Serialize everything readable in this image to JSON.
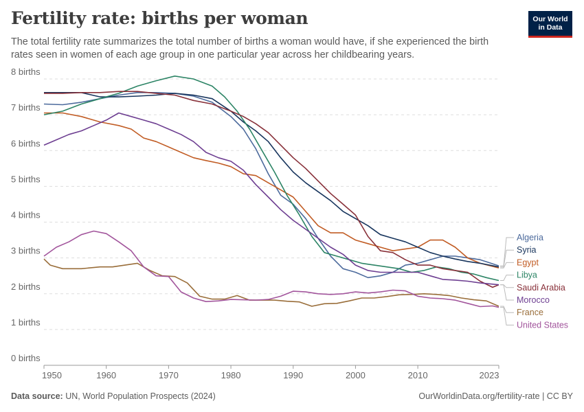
{
  "header": {
    "title": "Fertility rate: births per woman",
    "subtitle": "The total fertility rate summarizes the total number of births a woman would have, if she experienced the birth rates seen in women of each age group in one particular year across her childbearing years."
  },
  "logo": {
    "line1": "Our World",
    "line2": "in Data",
    "bg": "#002147",
    "accent": "#ce261e"
  },
  "footer": {
    "source_label": "Data source:",
    "source_text": "UN, World Population Prospects (2024)",
    "right_text": "OurWorldinData.org/fertility-rate | CC BY"
  },
  "chart_data": {
    "type": "line",
    "title": "Fertility rate: births per woman",
    "ylabel": "",
    "xlabel": "",
    "xlim": [
      1950,
      2023
    ],
    "ylim": [
      0,
      8
    ],
    "yticks": [
      0,
      1,
      2,
      3,
      4,
      5,
      6,
      7,
      8
    ],
    "ytick_labels": [
      "0 births",
      "1 births",
      "2 births",
      "3 births",
      "4 births",
      "5 births",
      "6 births",
      "7 births",
      "8 births"
    ],
    "xticks": [
      1950,
      1960,
      1970,
      1980,
      1990,
      2000,
      2010,
      2023
    ],
    "xtick_labels": [
      "1950",
      "1960",
      "1970",
      "1980",
      "1990",
      "2000",
      "2010",
      "2023"
    ],
    "grid": "horizontal dashed",
    "legend": "right, end-of-line labels",
    "series": [
      {
        "name": "Algeria",
        "color": "#4c6a9c",
        "points": [
          [
            1950,
            7.3
          ],
          [
            1953,
            7.28
          ],
          [
            1956,
            7.35
          ],
          [
            1959,
            7.45
          ],
          [
            1962,
            7.55
          ],
          [
            1965,
            7.62
          ],
          [
            1968,
            7.62
          ],
          [
            1971,
            7.6
          ],
          [
            1974,
            7.52
          ],
          [
            1977,
            7.35
          ],
          [
            1980,
            6.95
          ],
          [
            1982,
            6.6
          ],
          [
            1984,
            6.05
          ],
          [
            1986,
            5.35
          ],
          [
            1988,
            4.75
          ],
          [
            1990,
            4.5
          ],
          [
            1992,
            4.1
          ],
          [
            1994,
            3.55
          ],
          [
            1996,
            3.05
          ],
          [
            1998,
            2.7
          ],
          [
            2000,
            2.6
          ],
          [
            2002,
            2.45
          ],
          [
            2004,
            2.5
          ],
          [
            2006,
            2.6
          ],
          [
            2008,
            2.8
          ],
          [
            2010,
            2.85
          ],
          [
            2012,
            2.95
          ],
          [
            2014,
            3.05
          ],
          [
            2016,
            3.05
          ],
          [
            2018,
            3.0
          ],
          [
            2020,
            2.95
          ],
          [
            2023,
            2.78
          ]
        ]
      },
      {
        "name": "Egypt",
        "color": "#c15c24",
        "points": [
          [
            1950,
            7.05
          ],
          [
            1953,
            7.05
          ],
          [
            1956,
            6.95
          ],
          [
            1959,
            6.8
          ],
          [
            1962,
            6.7
          ],
          [
            1964,
            6.6
          ],
          [
            1966,
            6.35
          ],
          [
            1968,
            6.25
          ],
          [
            1970,
            6.1
          ],
          [
            1972,
            5.95
          ],
          [
            1974,
            5.8
          ],
          [
            1976,
            5.72
          ],
          [
            1978,
            5.65
          ],
          [
            1980,
            5.55
          ],
          [
            1982,
            5.35
          ],
          [
            1984,
            5.3
          ],
          [
            1986,
            5.1
          ],
          [
            1988,
            4.9
          ],
          [
            1990,
            4.7
          ],
          [
            1992,
            4.3
          ],
          [
            1994,
            3.9
          ],
          [
            1996,
            3.7
          ],
          [
            1998,
            3.7
          ],
          [
            2000,
            3.5
          ],
          [
            2002,
            3.4
          ],
          [
            2004,
            3.3
          ],
          [
            2006,
            3.2
          ],
          [
            2008,
            3.25
          ],
          [
            2010,
            3.3
          ],
          [
            2012,
            3.5
          ],
          [
            2014,
            3.5
          ],
          [
            2016,
            3.3
          ],
          [
            2018,
            3.0
          ],
          [
            2020,
            2.85
          ],
          [
            2023,
            2.72
          ]
        ]
      },
      {
        "name": "Syria",
        "color": "#18355d",
        "points": [
          [
            1950,
            7.62
          ],
          [
            1953,
            7.62
          ],
          [
            1956,
            7.62
          ],
          [
            1959,
            7.5
          ],
          [
            1962,
            7.5
          ],
          [
            1965,
            7.52
          ],
          [
            1968,
            7.55
          ],
          [
            1971,
            7.6
          ],
          [
            1974,
            7.55
          ],
          [
            1977,
            7.45
          ],
          [
            1980,
            7.1
          ],
          [
            1982,
            6.8
          ],
          [
            1984,
            6.55
          ],
          [
            1986,
            6.25
          ],
          [
            1988,
            5.8
          ],
          [
            1990,
            5.4
          ],
          [
            1992,
            5.1
          ],
          [
            1994,
            4.85
          ],
          [
            1996,
            4.6
          ],
          [
            1998,
            4.3
          ],
          [
            2000,
            4.1
          ],
          [
            2002,
            3.9
          ],
          [
            2004,
            3.65
          ],
          [
            2006,
            3.55
          ],
          [
            2008,
            3.45
          ],
          [
            2010,
            3.3
          ],
          [
            2012,
            3.15
          ],
          [
            2014,
            3.05
          ],
          [
            2016,
            2.97
          ],
          [
            2018,
            2.9
          ],
          [
            2020,
            2.85
          ],
          [
            2023,
            2.75
          ]
        ]
      },
      {
        "name": "Libya",
        "color": "#2c8465",
        "points": [
          [
            1950,
            7.0
          ],
          [
            1953,
            7.1
          ],
          [
            1956,
            7.3
          ],
          [
            1959,
            7.45
          ],
          [
            1962,
            7.6
          ],
          [
            1965,
            7.8
          ],
          [
            1968,
            7.95
          ],
          [
            1971,
            8.08
          ],
          [
            1974,
            8.0
          ],
          [
            1977,
            7.8
          ],
          [
            1979,
            7.5
          ],
          [
            1981,
            7.1
          ],
          [
            1983,
            6.6
          ],
          [
            1985,
            6.0
          ],
          [
            1987,
            5.4
          ],
          [
            1989,
            4.75
          ],
          [
            1991,
            4.2
          ],
          [
            1993,
            3.6
          ],
          [
            1995,
            3.15
          ],
          [
            1997,
            3.05
          ],
          [
            1999,
            2.95
          ],
          [
            2001,
            2.85
          ],
          [
            2003,
            2.8
          ],
          [
            2005,
            2.75
          ],
          [
            2007,
            2.7
          ],
          [
            2009,
            2.6
          ],
          [
            2011,
            2.65
          ],
          [
            2013,
            2.75
          ],
          [
            2015,
            2.7
          ],
          [
            2017,
            2.6
          ],
          [
            2019,
            2.55
          ],
          [
            2021,
            2.45
          ],
          [
            2023,
            2.37
          ]
        ]
      },
      {
        "name": "Saudi Arabia",
        "color": "#883039",
        "points": [
          [
            1950,
            7.6
          ],
          [
            1953,
            7.6
          ],
          [
            1956,
            7.62
          ],
          [
            1959,
            7.62
          ],
          [
            1962,
            7.65
          ],
          [
            1965,
            7.65
          ],
          [
            1968,
            7.6
          ],
          [
            1971,
            7.55
          ],
          [
            1974,
            7.4
          ],
          [
            1977,
            7.3
          ],
          [
            1980,
            7.1
          ],
          [
            1982,
            6.95
          ],
          [
            1984,
            6.75
          ],
          [
            1986,
            6.5
          ],
          [
            1988,
            6.15
          ],
          [
            1990,
            5.8
          ],
          [
            1992,
            5.5
          ],
          [
            1994,
            5.15
          ],
          [
            1996,
            4.8
          ],
          [
            1998,
            4.5
          ],
          [
            2000,
            4.2
          ],
          [
            2002,
            3.6
          ],
          [
            2004,
            3.2
          ],
          [
            2006,
            3.15
          ],
          [
            2008,
            2.95
          ],
          [
            2010,
            2.8
          ],
          [
            2012,
            2.8
          ],
          [
            2014,
            2.7
          ],
          [
            2016,
            2.65
          ],
          [
            2018,
            2.6
          ],
          [
            2020,
            2.35
          ],
          [
            2022,
            2.18
          ],
          [
            2023,
            2.25
          ]
        ]
      },
      {
        "name": "Morocco",
        "color": "#6d3e91",
        "points": [
          [
            1950,
            6.15
          ],
          [
            1952,
            6.3
          ],
          [
            1954,
            6.45
          ],
          [
            1956,
            6.55
          ],
          [
            1958,
            6.7
          ],
          [
            1960,
            6.85
          ],
          [
            1962,
            7.05
          ],
          [
            1964,
            6.95
          ],
          [
            1966,
            6.85
          ],
          [
            1968,
            6.75
          ],
          [
            1970,
            6.6
          ],
          [
            1972,
            6.45
          ],
          [
            1974,
            6.25
          ],
          [
            1976,
            5.95
          ],
          [
            1978,
            5.8
          ],
          [
            1980,
            5.7
          ],
          [
            1982,
            5.45
          ],
          [
            1984,
            5.05
          ],
          [
            1986,
            4.7
          ],
          [
            1988,
            4.35
          ],
          [
            1990,
            4.05
          ],
          [
            1992,
            3.8
          ],
          [
            1994,
            3.55
          ],
          [
            1996,
            3.3
          ],
          [
            1998,
            3.1
          ],
          [
            2000,
            2.8
          ],
          [
            2002,
            2.65
          ],
          [
            2004,
            2.6
          ],
          [
            2006,
            2.6
          ],
          [
            2008,
            2.6
          ],
          [
            2010,
            2.6
          ],
          [
            2012,
            2.5
          ],
          [
            2014,
            2.4
          ],
          [
            2016,
            2.38
          ],
          [
            2018,
            2.35
          ],
          [
            2020,
            2.3
          ],
          [
            2023,
            2.25
          ]
        ]
      },
      {
        "name": "France",
        "color": "#996d39",
        "points": [
          [
            1950,
            2.97
          ],
          [
            1951,
            2.8
          ],
          [
            1953,
            2.7
          ],
          [
            1956,
            2.7
          ],
          [
            1959,
            2.75
          ],
          [
            1961,
            2.75
          ],
          [
            1963,
            2.8
          ],
          [
            1965,
            2.85
          ],
          [
            1967,
            2.65
          ],
          [
            1969,
            2.5
          ],
          [
            1971,
            2.48
          ],
          [
            1973,
            2.3
          ],
          [
            1975,
            1.93
          ],
          [
            1977,
            1.85
          ],
          [
            1979,
            1.85
          ],
          [
            1981,
            1.95
          ],
          [
            1983,
            1.82
          ],
          [
            1985,
            1.82
          ],
          [
            1987,
            1.82
          ],
          [
            1989,
            1.79
          ],
          [
            1991,
            1.77
          ],
          [
            1993,
            1.65
          ],
          [
            1995,
            1.72
          ],
          [
            1997,
            1.73
          ],
          [
            1999,
            1.8
          ],
          [
            2001,
            1.88
          ],
          [
            2003,
            1.88
          ],
          [
            2005,
            1.92
          ],
          [
            2007,
            1.97
          ],
          [
            2009,
            1.98
          ],
          [
            2011,
            2.0
          ],
          [
            2013,
            1.98
          ],
          [
            2015,
            1.95
          ],
          [
            2017,
            1.88
          ],
          [
            2019,
            1.83
          ],
          [
            2021,
            1.8
          ],
          [
            2023,
            1.65
          ]
        ]
      },
      {
        "name": "United States",
        "color": "#a2559c",
        "points": [
          [
            1950,
            3.05
          ],
          [
            1952,
            3.3
          ],
          [
            1954,
            3.45
          ],
          [
            1956,
            3.65
          ],
          [
            1958,
            3.75
          ],
          [
            1960,
            3.68
          ],
          [
            1962,
            3.45
          ],
          [
            1964,
            3.2
          ],
          [
            1966,
            2.75
          ],
          [
            1968,
            2.5
          ],
          [
            1970,
            2.48
          ],
          [
            1972,
            2.05
          ],
          [
            1974,
            1.88
          ],
          [
            1976,
            1.78
          ],
          [
            1978,
            1.8
          ],
          [
            1980,
            1.84
          ],
          [
            1982,
            1.83
          ],
          [
            1984,
            1.82
          ],
          [
            1986,
            1.84
          ],
          [
            1988,
            1.93
          ],
          [
            1990,
            2.07
          ],
          [
            1992,
            2.05
          ],
          [
            1994,
            2.0
          ],
          [
            1996,
            1.98
          ],
          [
            1998,
            2.0
          ],
          [
            2000,
            2.05
          ],
          [
            2002,
            2.02
          ],
          [
            2004,
            2.05
          ],
          [
            2006,
            2.1
          ],
          [
            2008,
            2.08
          ],
          [
            2010,
            1.93
          ],
          [
            2012,
            1.88
          ],
          [
            2014,
            1.86
          ],
          [
            2016,
            1.82
          ],
          [
            2018,
            1.73
          ],
          [
            2020,
            1.64
          ],
          [
            2022,
            1.66
          ],
          [
            2023,
            1.62
          ]
        ]
      }
    ]
  }
}
